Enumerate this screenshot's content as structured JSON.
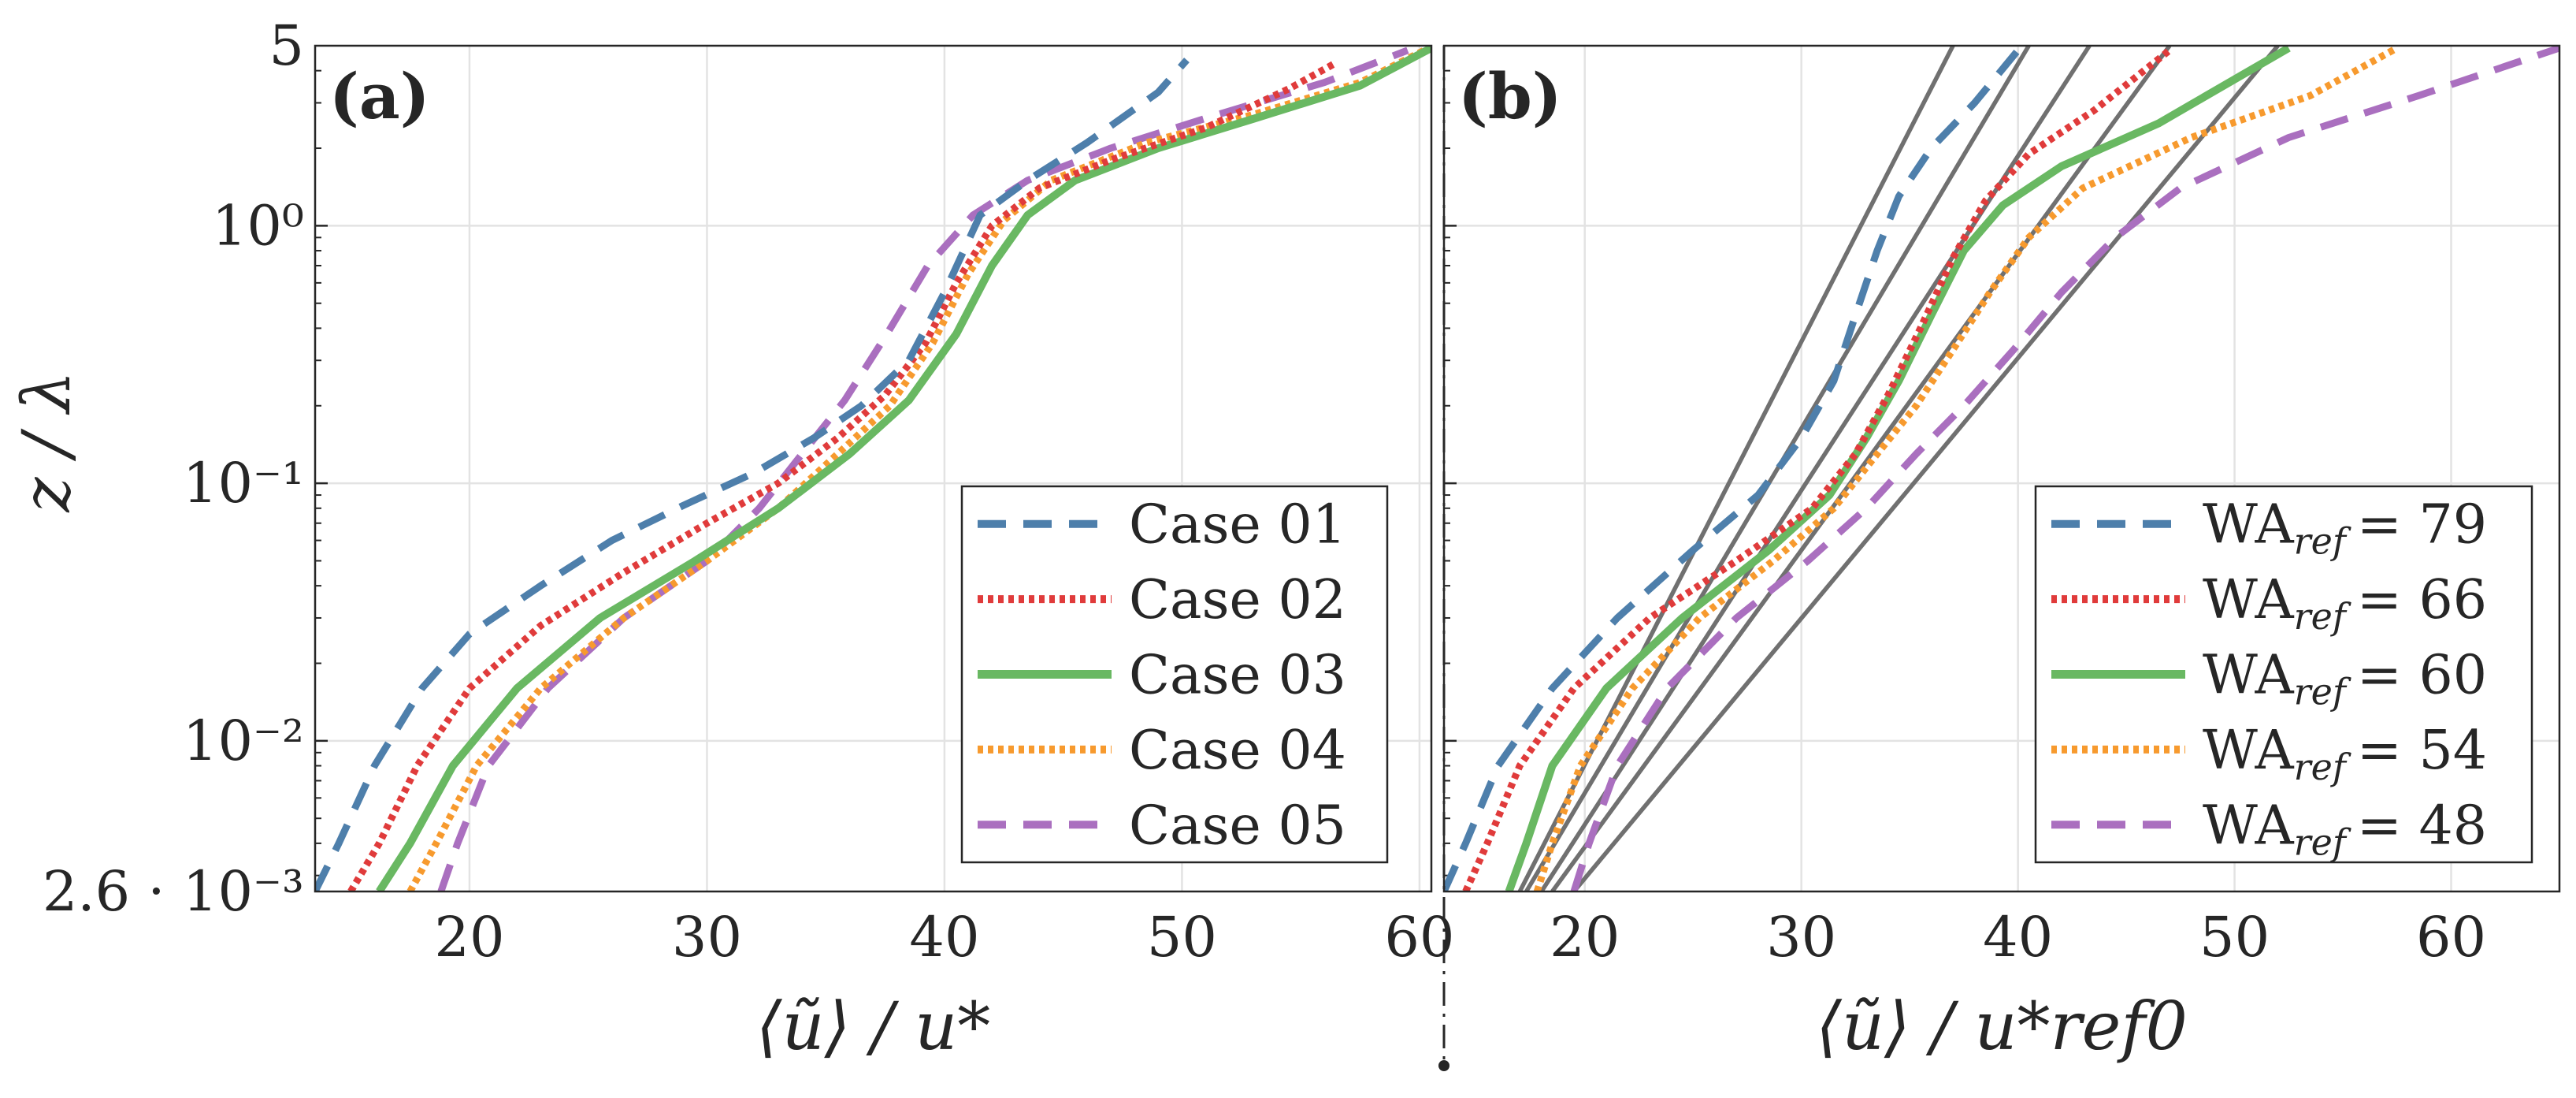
{
  "chart_data": [
    {
      "panel": "(a)",
      "type": "line",
      "title": "",
      "xlabel": "⟨ũ⟩ / u*",
      "ylabel": "z / λ",
      "xlim": [
        13.5,
        60.5
      ],
      "ylim": [
        0.0026,
        5
      ],
      "yscale": "log",
      "xticks": [
        20,
        30,
        40,
        50,
        60
      ],
      "xtick_labels": [
        "20",
        "30",
        "40",
        "50",
        "60"
      ],
      "yticks": [
        0.0026,
        0.01,
        0.1,
        1,
        5
      ],
      "ytick_labels": [
        "2.6 · 10⁻³",
        "10⁻²",
        "10⁻¹",
        "10⁰",
        "5"
      ],
      "grid": true,
      "legend_position": "bottom-right",
      "series": [
        {
          "name": "Case 01",
          "color": "#4e7fab",
          "style": "dashed",
          "x": [
            13.5,
            14.5,
            16,
            18,
            20,
            23,
            26,
            29,
            32,
            34.5,
            36.5,
            38.5,
            40,
            41.5,
            43.5,
            46,
            49,
            50.2
          ],
          "y": [
            0.0026,
            0.004,
            0.008,
            0.016,
            0.026,
            0.04,
            0.06,
            0.082,
            0.11,
            0.15,
            0.2,
            0.3,
            0.55,
            1.1,
            1.5,
            2.1,
            3.3,
            4.4
          ]
        },
        {
          "name": "Case 02",
          "color": "#e03b3b",
          "style": "dotted",
          "x": [
            15,
            16.2,
            17.8,
            20,
            23,
            26.5,
            30,
            33,
            35.5,
            37.5,
            39.2,
            40.5,
            42,
            44,
            47,
            51,
            54.5,
            56.5
          ],
          "y": [
            0.0026,
            0.004,
            0.008,
            0.016,
            0.028,
            0.045,
            0.07,
            0.1,
            0.15,
            0.22,
            0.35,
            0.6,
            1.0,
            1.4,
            1.8,
            2.4,
            3.4,
            4.3
          ]
        },
        {
          "name": "Case 03",
          "color": "#69b862",
          "style": "solid",
          "x": [
            16.2,
            17.5,
            19.3,
            22,
            25.5,
            29.5,
            33,
            36,
            38.5,
            40.5,
            42,
            43.5,
            45.5,
            49,
            53,
            57.5,
            60.5
          ],
          "y": [
            0.0026,
            0.004,
            0.008,
            0.016,
            0.03,
            0.05,
            0.08,
            0.13,
            0.21,
            0.38,
            0.7,
            1.1,
            1.5,
            2.0,
            2.6,
            3.5,
            4.9
          ]
        },
        {
          "name": "Case 04",
          "color": "#f79a2e",
          "style": "dotted",
          "x": [
            17.5,
            18.6,
            20.3,
            23,
            26.5,
            30,
            33,
            35.5,
            37.7,
            39.5,
            41,
            42.5,
            44.5,
            48.5,
            53,
            57.5,
            60.2
          ],
          "y": [
            0.0026,
            0.004,
            0.008,
            0.016,
            0.03,
            0.05,
            0.08,
            0.13,
            0.2,
            0.35,
            0.65,
            1.05,
            1.5,
            2.1,
            2.7,
            3.6,
            4.8
          ]
        },
        {
          "name": "Case 05",
          "color": "#aa6fbf",
          "style": "dashed",
          "x": [
            18.8,
            19.5,
            20.8,
            23.3,
            26.5,
            30,
            32.2,
            34,
            35.8,
            37.5,
            39.3,
            41.2,
            43.5,
            47,
            51.5,
            56,
            59.5
          ],
          "y": [
            0.0026,
            0.004,
            0.008,
            0.016,
            0.03,
            0.05,
            0.08,
            0.13,
            0.21,
            0.37,
            0.7,
            1.1,
            1.5,
            2.0,
            2.7,
            3.6,
            4.8
          ]
        }
      ]
    },
    {
      "panel": "(b)",
      "type": "line",
      "title": "",
      "xlabel": "⟨ũ⟩ / u*ref0",
      "ylabel": "",
      "xlim": [
        13.5,
        65
      ],
      "ylim": [
        0.0026,
        5
      ],
      "yscale": "log",
      "xticks": [
        20,
        30,
        40,
        50,
        60
      ],
      "xtick_labels": [
        "20",
        "30",
        "40",
        "50",
        "60"
      ],
      "grid": true,
      "legend_position": "bottom-right",
      "series": [
        {
          "name": "WA",
          "sub": "ref",
          "value": "= 79",
          "color": "#4e7fab",
          "style": "dashed",
          "x": [
            13.5,
            14.5,
            16,
            18.5,
            21.5,
            25,
            28,
            30,
            31.5,
            32.5,
            33.5,
            34.5,
            36,
            38,
            40
          ],
          "y": [
            0.0026,
            0.004,
            0.008,
            0.016,
            0.03,
            0.055,
            0.09,
            0.15,
            0.25,
            0.45,
            0.8,
            1.3,
            2.0,
            3.0,
            4.8
          ]
        },
        {
          "name": "WA",
          "sub": "ref",
          "value": "= 66",
          "color": "#e03b3b",
          "style": "dotted",
          "x": [
            14.5,
            15.5,
            17,
            19.5,
            23,
            27,
            30.5,
            32.5,
            34,
            35.5,
            37,
            38.5,
            40.5,
            43.5,
            47
          ],
          "y": [
            0.0026,
            0.004,
            0.008,
            0.016,
            0.03,
            0.05,
            0.08,
            0.13,
            0.22,
            0.4,
            0.75,
            1.25,
            1.9,
            2.8,
            4.8
          ]
        },
        {
          "name": "WA",
          "sub": "ref",
          "value": "= 60",
          "color": "#69b862",
          "style": "solid",
          "x": [
            16.5,
            17.3,
            18.5,
            21,
            24.5,
            28.5,
            31.3,
            33,
            34.5,
            36,
            37.5,
            39.3,
            42,
            46.5,
            52.5
          ],
          "y": [
            0.0026,
            0.004,
            0.008,
            0.016,
            0.03,
            0.055,
            0.09,
            0.15,
            0.25,
            0.45,
            0.8,
            1.2,
            1.7,
            2.5,
            4.9
          ]
        },
        {
          "name": "WA",
          "sub": "ref",
          "value": "= 54",
          "color": "#f79a2e",
          "style": "dotted",
          "x": [
            17.8,
            18.5,
            19.8,
            22.2,
            25.3,
            28.7,
            31.5,
            33.5,
            35.3,
            37,
            38.7,
            40.5,
            43,
            48,
            53.5,
            57.5
          ],
          "y": [
            0.0026,
            0.004,
            0.008,
            0.016,
            0.03,
            0.05,
            0.08,
            0.13,
            0.2,
            0.33,
            0.55,
            0.9,
            1.4,
            2.2,
            3.2,
            4.9
          ]
        },
        {
          "name": "WA",
          "sub": "ref",
          "value": "= 48",
          "color": "#aa6fbf",
          "style": "dashed",
          "x": [
            19.5,
            20.2,
            21.5,
            23.8,
            27,
            30.3,
            33,
            35.3,
            37.5,
            39.8,
            42,
            44.5,
            47.5,
            52.5,
            58.5,
            65
          ],
          "y": [
            0.0026,
            0.004,
            0.008,
            0.016,
            0.03,
            0.05,
            0.08,
            0.13,
            0.2,
            0.33,
            0.55,
            0.9,
            1.4,
            2.2,
            3.2,
            4.9
          ]
        }
      ],
      "reference_lines": {
        "color": "#707070",
        "lines": [
          {
            "x": [
              17.0,
              37.0
            ],
            "y": [
              0.0026,
              5
            ]
          },
          {
            "x": [
              17.3,
              40.5
            ],
            "y": [
              0.0026,
              5
            ]
          },
          {
            "x": [
              18.0,
              43.3
            ],
            "y": [
              0.0026,
              5
            ]
          },
          {
            "x": [
              18.5,
              47.0
            ],
            "y": [
              0.0026,
              5
            ]
          },
          {
            "x": [
              19.5,
              52.0
            ],
            "y": [
              0.0026,
              5
            ]
          }
        ]
      }
    }
  ]
}
